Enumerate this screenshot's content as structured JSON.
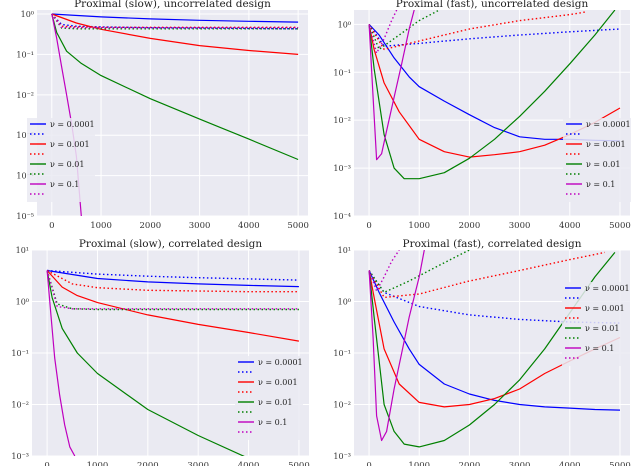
{
  "chart_data": [
    {
      "type": "line",
      "title": "Proximal (slow), uncorrelated design",
      "yscale": "log",
      "xlim": [
        -300,
        5200
      ],
      "ylim_exp": [
        -5,
        0.1
      ],
      "xticks": [
        0,
        1000,
        2000,
        3000,
        4000,
        5000
      ],
      "xtick_labels": [
        "0",
        "1000",
        "2000",
        "3000",
        "4000",
        "5000"
      ],
      "yticks_exp": [
        -5,
        -4,
        -3,
        -2,
        -1,
        0
      ],
      "ytick_labels": [
        "10⁻⁵",
        "10⁻⁴",
        "10⁻³",
        "10⁻²",
        "10⁻¹",
        "10⁰"
      ],
      "legend_loc": "lower left",
      "legend": [
        "ν = 0.0001",
        "",
        "ν = 0.001",
        "",
        "ν = 0.01",
        "",
        "ν = 0.1",
        ""
      ],
      "series": [
        {
          "name": "ν = 0.0001",
          "style": "solid",
          "color": "#0000ff",
          "x": [
            0,
            1000,
            2000,
            3000,
            4000,
            5000
          ],
          "y": [
            1.0,
            0.85,
            0.76,
            0.7,
            0.66,
            0.63
          ]
        },
        {
          "name": "ν = 0.0001 (dotted)",
          "style": "dotted",
          "color": "#0000ff",
          "x": [
            0,
            200,
            500,
            1000,
            2000,
            3000,
            4000,
            5000
          ],
          "y": [
            1.0,
            0.55,
            0.5,
            0.48,
            0.46,
            0.45,
            0.44,
            0.43
          ]
        },
        {
          "name": "ν = 0.001",
          "style": "solid",
          "color": "#ff0000",
          "x": [
            0,
            500,
            1000,
            2000,
            3000,
            4000,
            5000
          ],
          "y": [
            1.0,
            0.6,
            0.42,
            0.25,
            0.165,
            0.125,
            0.1
          ]
        },
        {
          "name": "ν = 0.001 (dotted)",
          "style": "dotted",
          "color": "#ff0000",
          "x": [
            0,
            200,
            500,
            1000,
            2000,
            3000,
            4000,
            5000
          ],
          "y": [
            1.0,
            0.5,
            0.48,
            0.47,
            0.47,
            0.47,
            0.47,
            0.47
          ]
        },
        {
          "name": "ν = 0.01",
          "style": "solid",
          "color": "#008000",
          "x": [
            0,
            100,
            300,
            600,
            1000,
            2000,
            3000,
            4000,
            5000
          ],
          "y": [
            1.0,
            0.35,
            0.12,
            0.06,
            0.03,
            0.008,
            0.0025,
            0.0008,
            0.00025
          ]
        },
        {
          "name": "ν = 0.01 (dotted)",
          "style": "dotted",
          "color": "#008000",
          "x": [
            0,
            200,
            500,
            1000,
            2000,
            3000,
            4000,
            5000
          ],
          "y": [
            1.0,
            0.45,
            0.43,
            0.43,
            0.43,
            0.43,
            0.43,
            0.43
          ]
        },
        {
          "name": "ν = 0.1",
          "style": "solid",
          "color": "#bf00bf",
          "x": [
            0,
            100,
            200,
            300,
            400,
            500,
            600
          ],
          "y": [
            1.0,
            0.25,
            0.05,
            0.01,
            0.002,
            0.0003,
            1e-05
          ]
        },
        {
          "name": "ν = 0.1 (dotted)",
          "style": "dotted",
          "color": "#bf00bf",
          "x": [
            0,
            200,
            500,
            1000,
            2000,
            3000,
            4000,
            5000
          ],
          "y": [
            1.0,
            0.47,
            0.46,
            0.46,
            0.46,
            0.46,
            0.46,
            0.46
          ]
        }
      ]
    },
    {
      "type": "line",
      "title": "Proximal (fast), uncorrelated design",
      "yscale": "log",
      "xlim": [
        -300,
        5200
      ],
      "ylim_exp": [
        -4,
        0.3
      ],
      "xticks": [
        0,
        1000,
        2000,
        3000,
        4000,
        5000
      ],
      "xtick_labels": [
        "0",
        "1000",
        "2000",
        "3000",
        "4000",
        "5000"
      ],
      "yticks_exp": [
        -4,
        -3,
        -2,
        -1,
        0
      ],
      "ytick_labels": [
        "10⁻⁴",
        "10⁻³",
        "10⁻²",
        "10⁻¹",
        "10⁰"
      ],
      "legend_loc": "lower right",
      "legend": [
        "ν = 0.0001",
        "",
        "ν = 0.001",
        "",
        "ν = 0.01",
        "",
        "ν = 0.1",
        ""
      ],
      "series": [
        {
          "name": "ν = 0.0001",
          "style": "solid",
          "color": "#0000ff",
          "x": [
            0,
            200,
            500,
            800,
            1000,
            1500,
            2000,
            2500,
            3000,
            3500,
            4000,
            4500,
            5000
          ],
          "y": [
            1.0,
            0.6,
            0.2,
            0.08,
            0.05,
            0.025,
            0.013,
            0.007,
            0.0045,
            0.004,
            0.004,
            0.0038,
            0.0037
          ]
        },
        {
          "name": "ν = 0.0001 (dotted)",
          "style": "dotted",
          "color": "#0000ff",
          "x": [
            0,
            300,
            1000,
            2000,
            3000,
            4000,
            5000
          ],
          "y": [
            1.0,
            0.35,
            0.4,
            0.5,
            0.6,
            0.7,
            0.8
          ]
        },
        {
          "name": "ν = 0.001",
          "style": "solid",
          "color": "#ff0000",
          "x": [
            0,
            100,
            300,
            600,
            1000,
            1500,
            2000,
            2500,
            3000,
            3500,
            4000,
            4500,
            5000
          ],
          "y": [
            1.0,
            0.3,
            0.06,
            0.015,
            0.004,
            0.0022,
            0.0017,
            0.0019,
            0.0022,
            0.003,
            0.005,
            0.009,
            0.018
          ]
        },
        {
          "name": "ν = 0.001 (dotted)",
          "style": "dotted",
          "color": "#ff0000",
          "x": [
            0,
            300,
            1000,
            2000,
            3000,
            4000,
            4300
          ],
          "y": [
            1.0,
            0.3,
            0.45,
            0.8,
            1.2,
            1.6,
            1.8
          ]
        },
        {
          "name": "ν = 0.01",
          "style": "solid",
          "color": "#008000",
          "x": [
            0,
            100,
            300,
            500,
            700,
            1000,
            1500,
            2000,
            2500,
            3000,
            3500,
            4000,
            4500,
            4900
          ],
          "y": [
            1.0,
            0.12,
            0.005,
            0.001,
            0.0006,
            0.0006,
            0.0008,
            0.0016,
            0.004,
            0.012,
            0.04,
            0.15,
            0.6,
            2.0
          ]
        },
        {
          "name": "ν = 0.01 (dotted)",
          "style": "dotted",
          "color": "#008000",
          "x": [
            0,
            200,
            600,
            1000,
            1400
          ],
          "y": [
            1.0,
            0.3,
            0.6,
            1.2,
            2.0
          ]
        },
        {
          "name": "ν = 0.1",
          "style": "solid",
          "color": "#bf00bf",
          "x": [
            0,
            80,
            150,
            250,
            350,
            500,
            650,
            800,
            900
          ],
          "y": [
            1.0,
            0.03,
            0.0015,
            0.002,
            0.006,
            0.03,
            0.15,
            0.8,
            2.0
          ]
        },
        {
          "name": "ν = 0.1 (dotted)",
          "style": "dotted",
          "color": "#bf00bf",
          "x": [
            0,
            150,
            300,
            450,
            550
          ],
          "y": [
            1.0,
            0.25,
            0.5,
            1.2,
            2.0
          ]
        }
      ]
    },
    {
      "type": "line",
      "title": "Proximal (slow), correlated design",
      "yscale": "log",
      "xlim": [
        -300,
        5200
      ],
      "ylim_exp": [
        -3,
        1
      ],
      "xticks": [
        0,
        1000,
        2000,
        3000,
        4000,
        5000
      ],
      "xtick_labels": [
        "0",
        "1000",
        "2000",
        "3000",
        "4000",
        "5000"
      ],
      "yticks_exp": [
        -3,
        -2,
        -1,
        0,
        1
      ],
      "ytick_labels": [
        "10⁻³",
        "10⁻²",
        "10⁻¹",
        "10⁰",
        "10¹"
      ],
      "legend_loc": "lower right",
      "legend": [
        "ν = 0.0001",
        "",
        "ν = 0.001",
        "",
        "ν = 0.01",
        "",
        "ν = 0.1",
        ""
      ],
      "series": [
        {
          "name": "ν = 0.0001",
          "style": "solid",
          "color": "#0000ff",
          "x": [
            0,
            1000,
            2000,
            3000,
            4000,
            5000
          ],
          "y": [
            4.0,
            2.8,
            2.4,
            2.2,
            2.05,
            1.95
          ]
        },
        {
          "name": "ν = 0.0001 (dotted)",
          "style": "dotted",
          "color": "#0000ff",
          "x": [
            0,
            1000,
            2000,
            3000,
            4000,
            5000
          ],
          "y": [
            4.0,
            3.4,
            3.1,
            2.9,
            2.75,
            2.6
          ]
        },
        {
          "name": "ν = 0.001",
          "style": "solid",
          "color": "#ff0000",
          "x": [
            0,
            300,
            600,
            1000,
            2000,
            3000,
            4000,
            5000
          ],
          "y": [
            4.0,
            1.9,
            1.3,
            0.95,
            0.55,
            0.36,
            0.25,
            0.17
          ]
        },
        {
          "name": "ν = 0.001 (dotted)",
          "style": "dotted",
          "color": "#ff0000",
          "x": [
            0,
            500,
            1000,
            2000,
            3000,
            4000,
            5000
          ],
          "y": [
            4.0,
            2.2,
            1.85,
            1.65,
            1.6,
            1.55,
            1.55
          ]
        },
        {
          "name": "ν = 0.01",
          "style": "solid",
          "color": "#008000",
          "x": [
            0,
            100,
            300,
            600,
            1000,
            2000,
            3000,
            4000,
            4300
          ],
          "y": [
            4.0,
            1.2,
            0.3,
            0.1,
            0.04,
            0.008,
            0.0025,
            0.0009,
            0.0007
          ]
        },
        {
          "name": "ν = 0.01 (dotted)",
          "style": "dotted",
          "color": "#008000",
          "x": [
            0,
            200,
            500,
            1000,
            2000,
            3000,
            4000,
            5000
          ],
          "y": [
            4.0,
            0.9,
            0.72,
            0.7,
            0.7,
            0.7,
            0.7,
            0.7
          ]
        },
        {
          "name": "ν = 0.1",
          "style": "solid",
          "color": "#bf00bf",
          "x": [
            0,
            80,
            150,
            250,
            350,
            450,
            550
          ],
          "y": [
            4.0,
            0.5,
            0.08,
            0.015,
            0.004,
            0.0015,
            0.001
          ]
        },
        {
          "name": "ν = 0.1 (dotted)",
          "style": "dotted",
          "color": "#bf00bf",
          "x": [
            0,
            200,
            500,
            1000,
            2000,
            3000,
            4000,
            5000
          ],
          "y": [
            4.0,
            0.8,
            0.72,
            0.72,
            0.72,
            0.72,
            0.72,
            0.72
          ]
        }
      ]
    },
    {
      "type": "line",
      "title": "Proximal (fast), correlated design",
      "yscale": "log",
      "xlim": [
        -300,
        5200
      ],
      "ylim_exp": [
        -3,
        1
      ],
      "xticks": [
        0,
        1000,
        2000,
        3000,
        4000,
        5000
      ],
      "xtick_labels": [
        "0",
        "1000",
        "2000",
        "3000",
        "4000",
        "5000"
      ],
      "yticks_exp": [
        -3,
        -2,
        -1,
        0,
        1
      ],
      "ytick_labels": [
        "10⁻³",
        "10⁻²",
        "10⁻¹",
        "10⁰",
        "10¹"
      ],
      "legend_loc": "center right",
      "legend": [
        "ν = 0.0001",
        "",
        "ν = 0.001",
        "",
        "ν = 0.01",
        "",
        "ν = 0.1",
        ""
      ],
      "series": [
        {
          "name": "ν = 0.0001",
          "style": "solid",
          "color": "#0000ff",
          "x": [
            0,
            200,
            500,
            800,
            1000,
            1500,
            2000,
            2500,
            3000,
            3500,
            4000,
            4500,
            5000
          ],
          "y": [
            4.0,
            1.5,
            0.4,
            0.12,
            0.06,
            0.025,
            0.016,
            0.012,
            0.01,
            0.009,
            0.0085,
            0.008,
            0.0078
          ]
        },
        {
          "name": "ν = 0.0001 (dotted)",
          "style": "dotted",
          "color": "#0000ff",
          "x": [
            0,
            300,
            1000,
            2000,
            3000,
            4000,
            5000
          ],
          "y": [
            4.0,
            1.5,
            0.8,
            0.55,
            0.45,
            0.4,
            0.38
          ]
        },
        {
          "name": "ν = 0.001",
          "style": "solid",
          "color": "#ff0000",
          "x": [
            0,
            100,
            300,
            600,
            1000,
            1500,
            2000,
            2500,
            3000,
            3500,
            4000,
            4500,
            5000
          ],
          "y": [
            4.0,
            1.2,
            0.12,
            0.025,
            0.011,
            0.009,
            0.01,
            0.013,
            0.02,
            0.04,
            0.07,
            0.12,
            0.2
          ]
        },
        {
          "name": "ν = 0.001 (dotted)",
          "style": "dotted",
          "color": "#ff0000",
          "x": [
            0,
            300,
            1000,
            2000,
            3000,
            4000,
            4700
          ],
          "y": [
            4.0,
            1.2,
            1.4,
            2.5,
            4.0,
            6.5,
            9.0
          ]
        },
        {
          "name": "ν = 0.01",
          "style": "solid",
          "color": "#008000",
          "x": [
            0,
            100,
            300,
            500,
            700,
            1000,
            1500,
            2000,
            2500,
            3000,
            3500,
            4000,
            4500,
            4900
          ],
          "y": [
            4.0,
            0.5,
            0.01,
            0.003,
            0.0017,
            0.0015,
            0.002,
            0.004,
            0.01,
            0.03,
            0.12,
            0.6,
            3.0,
            9.0
          ]
        },
        {
          "name": "ν = 0.01 (dotted)",
          "style": "dotted",
          "color": "#008000",
          "x": [
            0,
            300,
            800,
            1300,
            1800,
            2000
          ],
          "y": [
            4.0,
            1.5,
            2.5,
            4.5,
            8.0,
            10.0
          ]
        },
        {
          "name": "ν = 0.1",
          "style": "solid",
          "color": "#bf00bf",
          "x": [
            0,
            80,
            150,
            250,
            350,
            500,
            650,
            800,
            1000,
            1100
          ],
          "y": [
            4.0,
            0.2,
            0.006,
            0.002,
            0.003,
            0.02,
            0.1,
            0.5,
            3.0,
            10.0
          ]
        },
        {
          "name": "ν = 0.1 (dotted)",
          "style": "dotted",
          "color": "#bf00bf",
          "x": [
            0,
            150,
            300,
            450,
            600
          ],
          "y": [
            4.0,
            1.6,
            3.0,
            6.0,
            10.0
          ]
        }
      ]
    }
  ]
}
